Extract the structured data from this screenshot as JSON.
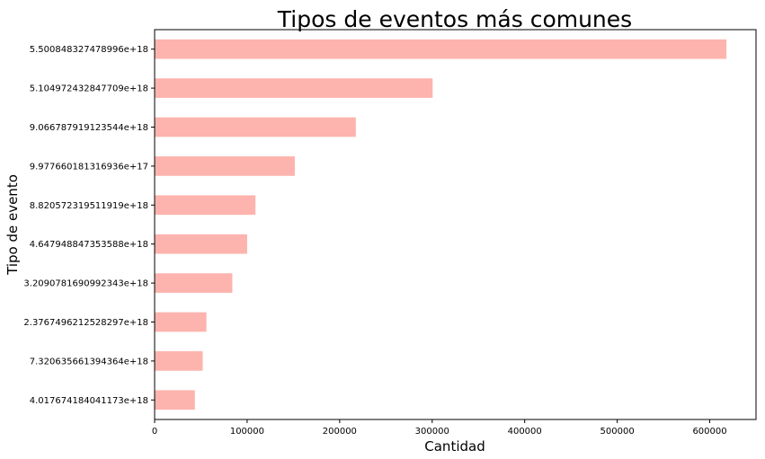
{
  "chart_data": {
    "type": "bar",
    "orientation": "horizontal",
    "title": "Tipos de eventos más comunes",
    "xlabel": "Cantidad",
    "ylabel": "Tipo de evento",
    "categories": [
      "5.500848327478996e+18",
      "5.104972432847709e+18",
      "9.066787919123544e+18",
      "9.977660181316936e+17",
      "8.820572319511919e+18",
      "4.647948847353588e+18",
      "3.2090781690992343e+18",
      "2.3767496212528297e+18",
      "7.320635661394364e+18",
      "4.017674184041173e+18"
    ],
    "values": [
      618000,
      300500,
      217500,
      151500,
      109000,
      100000,
      84000,
      56000,
      52000,
      43500
    ],
    "xlim": [
      0,
      650000
    ],
    "xticks": [
      "0",
      "100000",
      "200000",
      "300000",
      "400000",
      "500000",
      "600000"
    ],
    "bar_color": "#fdb4ae",
    "grid": false
  }
}
